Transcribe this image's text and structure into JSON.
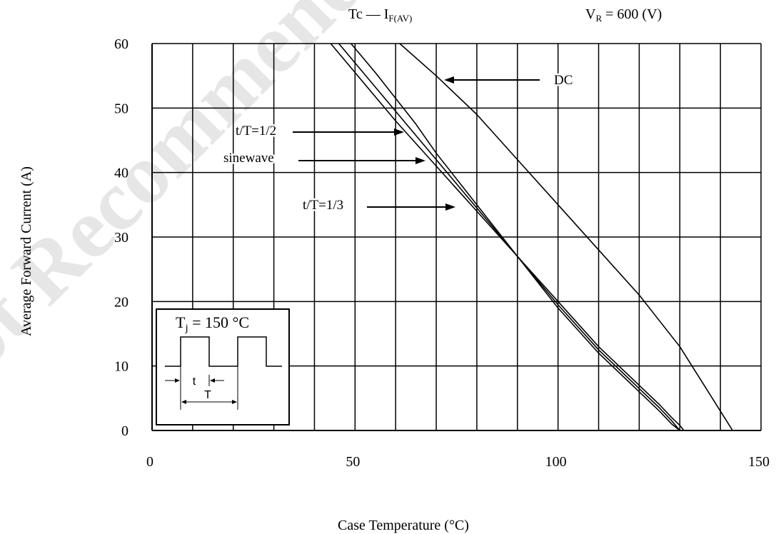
{
  "chart_data": {
    "type": "line",
    "title": "Tc  —  I",
    "title_sub": "F(AV)",
    "condition": {
      "main": "V",
      "sub": "R",
      "rest": " = 600 (V)"
    },
    "xlabel": "Case Temperature (°C)",
    "ylabel": "Average Forward Current (A)",
    "xlim": [
      0,
      150
    ],
    "ylim": [
      0,
      60
    ],
    "x_ticks": [
      0,
      50,
      100,
      150
    ],
    "y_ticks": [
      0,
      10,
      20,
      30,
      40,
      50,
      60
    ],
    "x_tick_labels": [
      "0",
      "50",
      "100",
      "150"
    ],
    "y_tick_labels": [
      "0",
      "10",
      "20",
      "30",
      "40",
      "50",
      "60"
    ],
    "grid": true,
    "series": [
      {
        "name": "DC",
        "points": [
          [
            61,
            60
          ],
          [
            70,
            55
          ],
          [
            80,
            49
          ],
          [
            90,
            42
          ],
          [
            100,
            35
          ],
          [
            110,
            28
          ],
          [
            120,
            21
          ],
          [
            125,
            17
          ],
          [
            130,
            13
          ],
          [
            135,
            8
          ],
          [
            138,
            5
          ],
          [
            140,
            3
          ],
          [
            142,
            1
          ],
          [
            143,
            0
          ]
        ]
      },
      {
        "name": "t/T=1/2",
        "points": [
          [
            49,
            60
          ],
          [
            55,
            55.5
          ],
          [
            60,
            51.5
          ],
          [
            65,
            47.5
          ],
          [
            70,
            43
          ],
          [
            80,
            35
          ],
          [
            90,
            27
          ],
          [
            100,
            19
          ],
          [
            110,
            12
          ],
          [
            120,
            6
          ],
          [
            125,
            3
          ],
          [
            128,
            1
          ],
          [
            130,
            0
          ]
        ]
      },
      {
        "name": "sinewave",
        "points": [
          [
            46,
            60
          ],
          [
            50,
            57
          ],
          [
            60,
            49.5
          ],
          [
            70,
            42
          ],
          [
            80,
            34.5
          ],
          [
            90,
            27
          ],
          [
            100,
            19.5
          ],
          [
            110,
            12.5
          ],
          [
            120,
            6.5
          ],
          [
            125,
            3.5
          ],
          [
            128,
            1.5
          ],
          [
            130,
            0
          ]
        ]
      },
      {
        "name": "t/T=1/3",
        "points": [
          [
            44,
            60
          ],
          [
            50,
            55.5
          ],
          [
            60,
            48
          ],
          [
            70,
            41
          ],
          [
            80,
            34
          ],
          [
            90,
            27
          ],
          [
            100,
            20
          ],
          [
            110,
            13
          ],
          [
            120,
            7
          ],
          [
            125,
            4
          ],
          [
            128,
            2
          ],
          [
            130,
            0.8
          ],
          [
            131,
            0
          ]
        ]
      }
    ],
    "annotations": [
      {
        "text": "DC",
        "arrow_to": [
          61,
          60
        ]
      },
      {
        "text": "t/T=1/2",
        "arrow_to": [
          49,
          60
        ]
      },
      {
        "text": "sinewave",
        "arrow_to": [
          46,
          60
        ]
      },
      {
        "text": "t/T=1/3",
        "arrow_to": [
          44,
          60
        ]
      }
    ],
    "inset": {
      "title_main": "T",
      "title_sub": "j",
      "title_rest": " = 150 °C",
      "label_t": "t",
      "label_T": "T"
    },
    "watermark": "Not Recommended"
  }
}
